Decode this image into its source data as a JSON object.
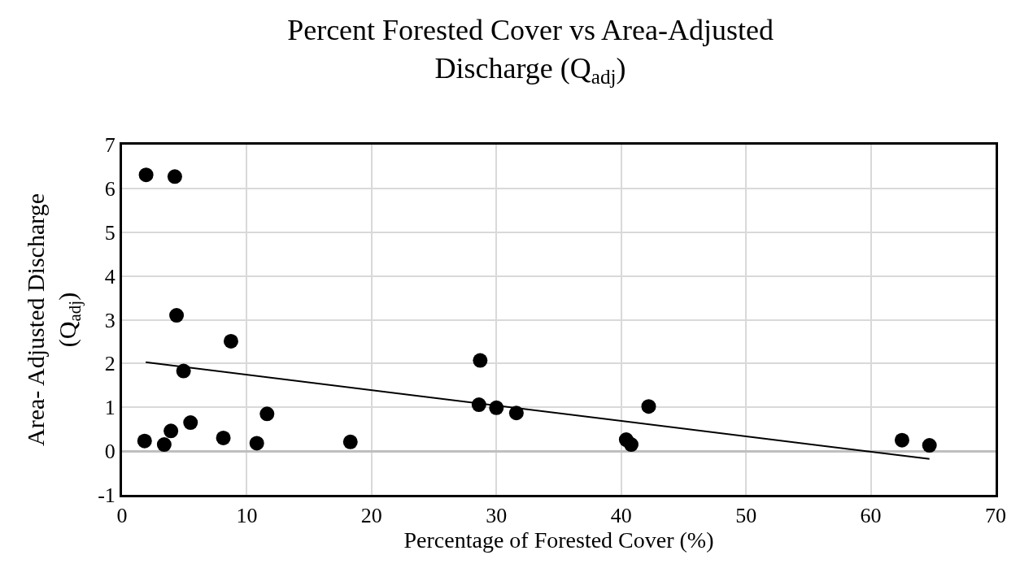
{
  "chart_data": {
    "type": "scatter",
    "title": "Percent Forested Cover vs Area-Adjusted Discharge (Q$_{adj}$)",
    "xlabel": "Percentage of Forested Cover (%)",
    "ylabel": "Area- Adjusted Discharge (Q$_{adj}$)",
    "xlim": [
      0,
      70
    ],
    "ylim": [
      -1,
      7
    ],
    "xticks": [
      0,
      10,
      20,
      30,
      40,
      50,
      60,
      70
    ],
    "yticks": [
      -1,
      0,
      1,
      2,
      3,
      4,
      5,
      6,
      7
    ],
    "grid": true,
    "marker": "circle",
    "series": [
      {
        "color": "#000000",
        "x": [
          1.93,
          4.23,
          4.37,
          8.73,
          4.93,
          1.81,
          3.38,
          3.92,
          5.49,
          8.12,
          10.8,
          11.62,
          18.3,
          28.7,
          28.6,
          30.0,
          31.6,
          42.2,
          40.4,
          40.8,
          62.5,
          64.7
        ],
        "values": [
          6.31,
          6.27,
          3.1,
          2.51,
          1.83,
          0.23,
          0.15,
          0.46,
          0.65,
          0.3,
          0.18,
          0.85,
          0.21,
          2.07,
          1.06,
          0.99,
          0.87,
          1.02,
          0.26,
          0.15,
          0.25,
          0.13
        ]
      },
      {
        "type": "line",
        "marker": "none",
        "color": "#000000",
        "x": [
          1.9,
          64.7
        ],
        "values": [
          2.03,
          -0.18
        ]
      }
    ]
  }
}
